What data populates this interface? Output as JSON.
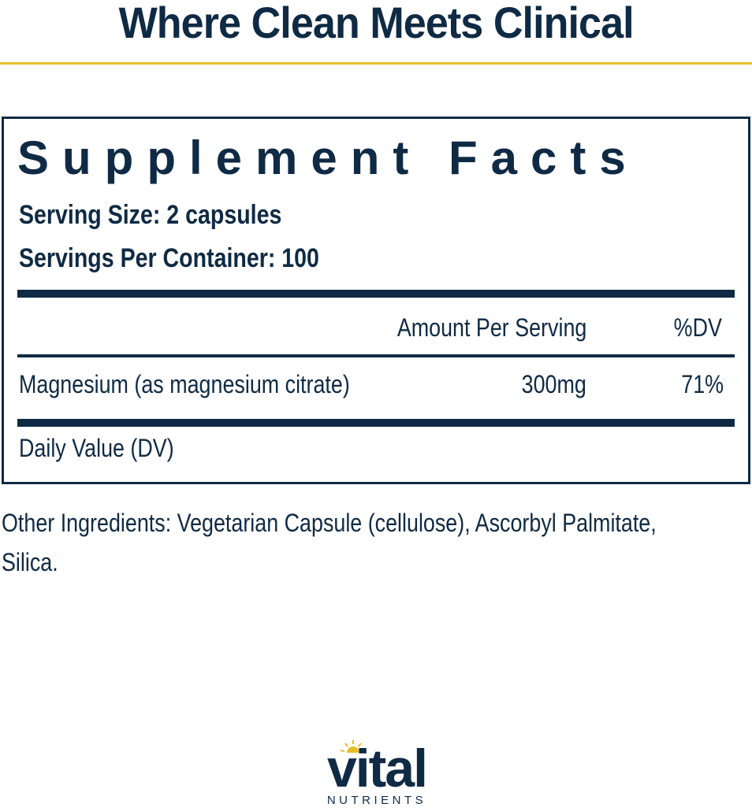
{
  "headline": "Where Clean Meets Clinical",
  "facts": {
    "title": "Supplement Facts",
    "serving_size": "Serving Size: 2 capsules",
    "servings_per_container": "Servings Per Container: 100",
    "col_amount": "Amount Per Serving",
    "col_dv": "%DV",
    "rows": [
      {
        "name": "Magnesium (as magnesium citrate)",
        "amount": "300mg",
        "dv": "71%"
      }
    ],
    "footnote": "Daily Value (DV)"
  },
  "other_ingredients_line1": "Other Ingredients: Vegetarian Capsule (cellulose), Ascorbyl Palmitate,",
  "other_ingredients_line2": "Silica.",
  "logo": {
    "word": "vital",
    "sub": "NUTRIENTS"
  },
  "colors": {
    "navy": "#0f2a44",
    "gold": "#e8bd2c"
  }
}
